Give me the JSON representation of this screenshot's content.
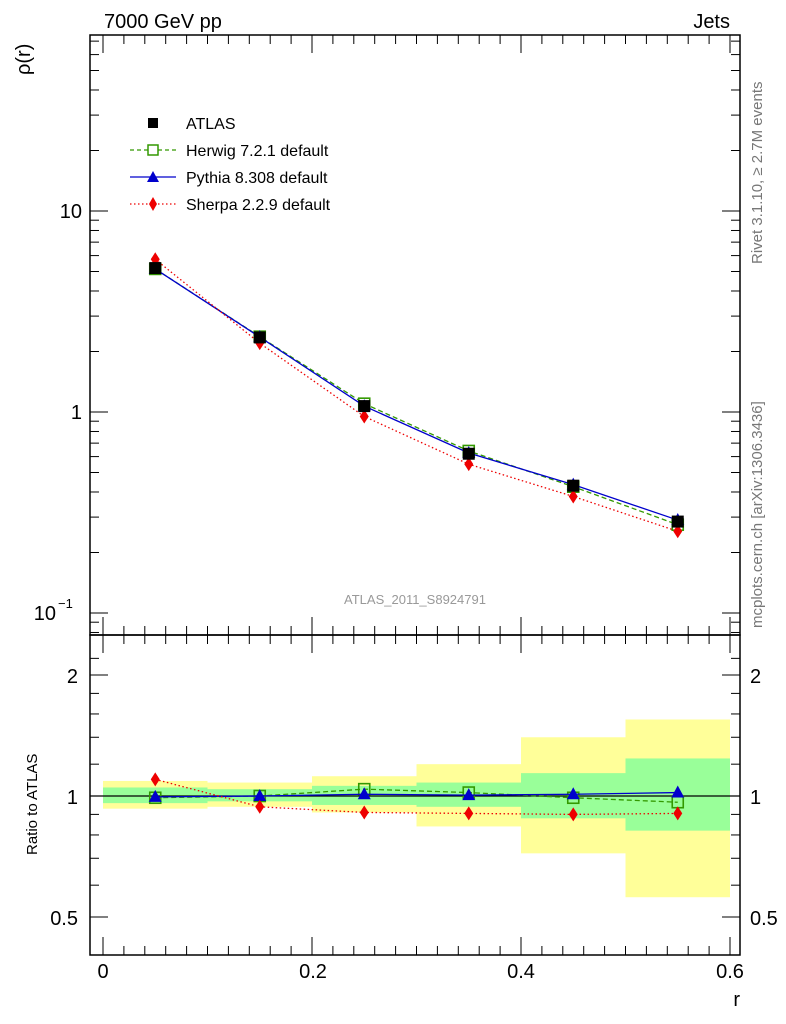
{
  "header": {
    "left_title": "7000 GeV pp",
    "right_title": "Jets"
  },
  "side_labels": {
    "top": "Rivet 3.1.10, ≥ 2.7M events",
    "bottom": "mcplots.cern.ch [arXiv:1306.3436]"
  },
  "watermark": "ATLAS_2011_S8924791",
  "colors": {
    "atlas": "#000000",
    "herwig": "#339900",
    "pythia": "#0000cc",
    "sherpa": "#ee0000",
    "band_inner": "#99ff99",
    "band_outer": "#ffff99"
  },
  "chart_data": [
    {
      "type": "line",
      "scale": "log",
      "ylabel": "ρ(r)",
      "ylim": [
        0.08,
        80
      ],
      "ytick_labels": {
        "t10": "10",
        "t1": "1",
        "t01_base": "10",
        "t01_exp": "−1"
      },
      "x": [
        0.05,
        0.15,
        0.25,
        0.35,
        0.45,
        0.55
      ],
      "series": [
        {
          "name": "ATLAS",
          "marker": "square",
          "values": [
            5.2,
            2.35,
            1.07,
            0.62,
            0.43,
            0.285
          ]
        },
        {
          "name": "Herwig 7.2.1 default",
          "marker": "open-square",
          "values": [
            5.15,
            2.37,
            1.1,
            0.64,
            0.425,
            0.275
          ]
        },
        {
          "name": "Pythia 8.308 default",
          "marker": "triangle",
          "values": [
            5.15,
            2.36,
            1.07,
            0.625,
            0.435,
            0.29
          ]
        },
        {
          "name": "Sherpa 2.2.9 default",
          "marker": "diamond",
          "values": [
            5.75,
            2.2,
            0.95,
            0.55,
            0.38,
            0.255
          ]
        }
      ]
    },
    {
      "type": "line",
      "scale": "log",
      "ylabel": "Ratio to ATLAS",
      "xlabel": "r",
      "xlim": [
        -0.02,
        0.62
      ],
      "ylim": [
        0.4,
        2.4
      ],
      "yticks": [
        "0.5",
        "1",
        "2"
      ],
      "xticks": [
        "0",
        "0.2",
        "0.4",
        "0.6"
      ],
      "x": [
        0.05,
        0.15,
        0.25,
        0.35,
        0.45,
        0.55
      ],
      "band_edges": [
        0.0,
        0.1,
        0.2,
        0.3,
        0.4,
        0.5,
        0.6
      ],
      "band_inner": [
        [
          0.96,
          1.05
        ],
        [
          0.97,
          1.04
        ],
        [
          0.95,
          1.06
        ],
        [
          0.94,
          1.08
        ],
        [
          0.88,
          1.14
        ],
        [
          0.82,
          1.24
        ]
      ],
      "band_outer": [
        [
          0.93,
          1.09
        ],
        [
          0.94,
          1.08
        ],
        [
          0.91,
          1.12
        ],
        [
          0.84,
          1.2
        ],
        [
          0.72,
          1.4
        ],
        [
          0.56,
          1.55
        ]
      ],
      "series": [
        {
          "name": "Herwig 7.2.1 default",
          "values": [
            0.99,
            1.0,
            1.04,
            1.02,
            0.99,
            0.965
          ]
        },
        {
          "name": "Pythia 8.308 default",
          "values": [
            0.995,
            1.0,
            1.01,
            1.005,
            1.01,
            1.02
          ]
        },
        {
          "name": "Sherpa 2.2.9 default",
          "values": [
            1.1,
            0.94,
            0.91,
            0.905,
            0.9,
            0.905
          ]
        }
      ]
    }
  ]
}
